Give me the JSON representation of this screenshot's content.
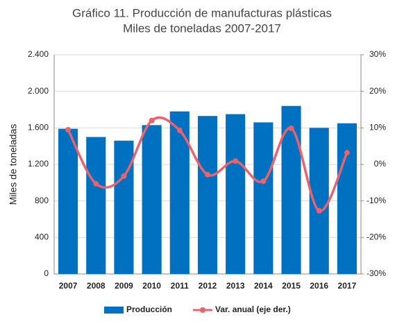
{
  "chart_data": {
    "type": "bar-line",
    "title": "Gráfico  11.  Producción de manufacturas plásticas",
    "subtitle": "Miles de toneladas 2007-2017",
    "y_label": "Miles de toneladas",
    "categories": [
      "2007",
      "2008",
      "2009",
      "2010",
      "2011",
      "2012",
      "2013",
      "2014",
      "2015",
      "2016",
      "2017"
    ],
    "series": [
      {
        "name": "Producción",
        "type": "bar",
        "color": "#0070c0",
        "values": [
          1590,
          1500,
          1460,
          1630,
          1780,
          1730,
          1750,
          1660,
          1840,
          1600,
          1650
        ]
      },
      {
        "name": "Var. anual (eje der.)",
        "type": "line",
        "axis": "y2",
        "color": "#e8636e",
        "values": [
          9.5,
          -5.3,
          -3.2,
          12.0,
          9.3,
          -2.8,
          0.9,
          -4.6,
          9.9,
          -12.7,
          3.2
        ]
      }
    ],
    "ylim": [
      0,
      2400
    ],
    "yticks": [
      0,
      400,
      800,
      {
        "value": 1200,
        "label": "1.200"
      },
      {
        "value": 1600,
        "label": "1.600"
      },
      {
        "value": 2000,
        "label": "2.000"
      },
      {
        "value": 2400,
        "label": "2.400"
      }
    ],
    "y2lim": [
      -30,
      30
    ],
    "y2ticks": [
      {
        "value": -30,
        "label": "-30%"
      },
      {
        "value": -20,
        "label": "-20%"
      },
      {
        "value": -10,
        "label": "-10%"
      },
      {
        "value": 0,
        "label": "0%"
      },
      {
        "value": 10,
        "label": "10%"
      },
      {
        "value": 20,
        "label": "20%"
      },
      {
        "value": 30,
        "label": "30%"
      }
    ],
    "grid": true
  }
}
